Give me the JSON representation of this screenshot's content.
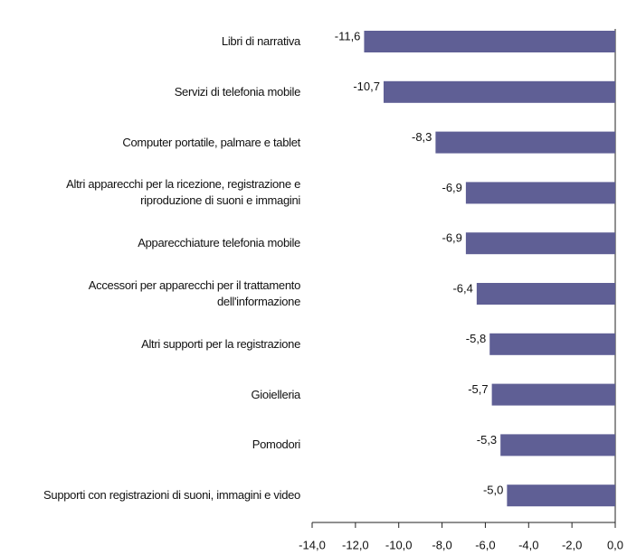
{
  "chart_data": {
    "type": "barh",
    "categories": [
      "Libri di narrativa",
      "Servizi di telefonia mobile",
      "Computer portatile, palmare e tablet",
      "Altri apparecchi per la ricezione, registrazione e\nriproduzione di suoni e immagini",
      "Apparecchiature telefonia mobile",
      "Accessori per apparecchi per il trattamento\ndell'informazione",
      "Altri supporti per la registrazione",
      "Gioielleria",
      "Pomodori",
      "Supporti con registrazioni di suoni, immagini e video"
    ],
    "values": [
      -11.6,
      -10.7,
      -8.3,
      -6.9,
      -6.9,
      -6.4,
      -5.8,
      -5.7,
      -5.3,
      -5.0
    ],
    "value_labels": [
      "-11,6",
      "-10,7",
      "-8,3",
      "-6,9",
      "-6,9",
      "-6,4",
      "-5,8",
      "-5,7",
      "-5,3",
      "-5,0"
    ],
    "color": "#5f5f95",
    "xlim": [
      -14,
      0
    ],
    "xticks": [
      {
        "value": -14,
        "label": "-14,0"
      },
      {
        "value": -12,
        "label": "-12,0"
      },
      {
        "value": -10,
        "label": "-10,0"
      },
      {
        "value": -8,
        "label": "-8,0"
      },
      {
        "value": -6,
        "label": "-6,0"
      },
      {
        "value": -4,
        "label": "-4,0"
      },
      {
        "value": -2,
        "label": "-2,0"
      },
      {
        "value": 0,
        "label": "0,0"
      }
    ]
  }
}
